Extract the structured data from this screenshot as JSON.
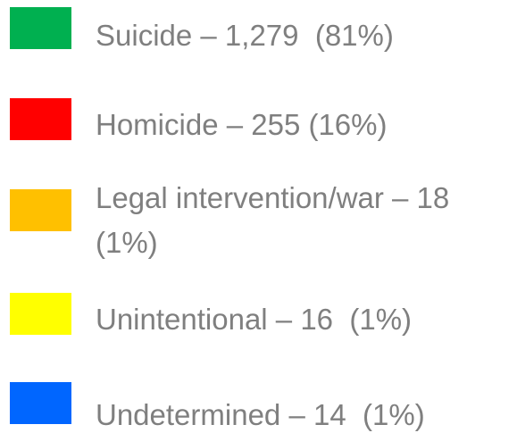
{
  "items": [
    {
      "color": "#00b050",
      "label": "Suicide – 1,279  (81%)"
    },
    {
      "color": "#ff0000",
      "label": "Homicide – 255 (16%)"
    },
    {
      "color": "#ffc000",
      "label": "Legal intervention/war – 18 (1%)"
    },
    {
      "color": "#ffff00",
      "label": "Unintentional – 16  (1%)"
    },
    {
      "color": "#0066ff",
      "label": "Undetermined – 14  (1%)"
    }
  ]
}
